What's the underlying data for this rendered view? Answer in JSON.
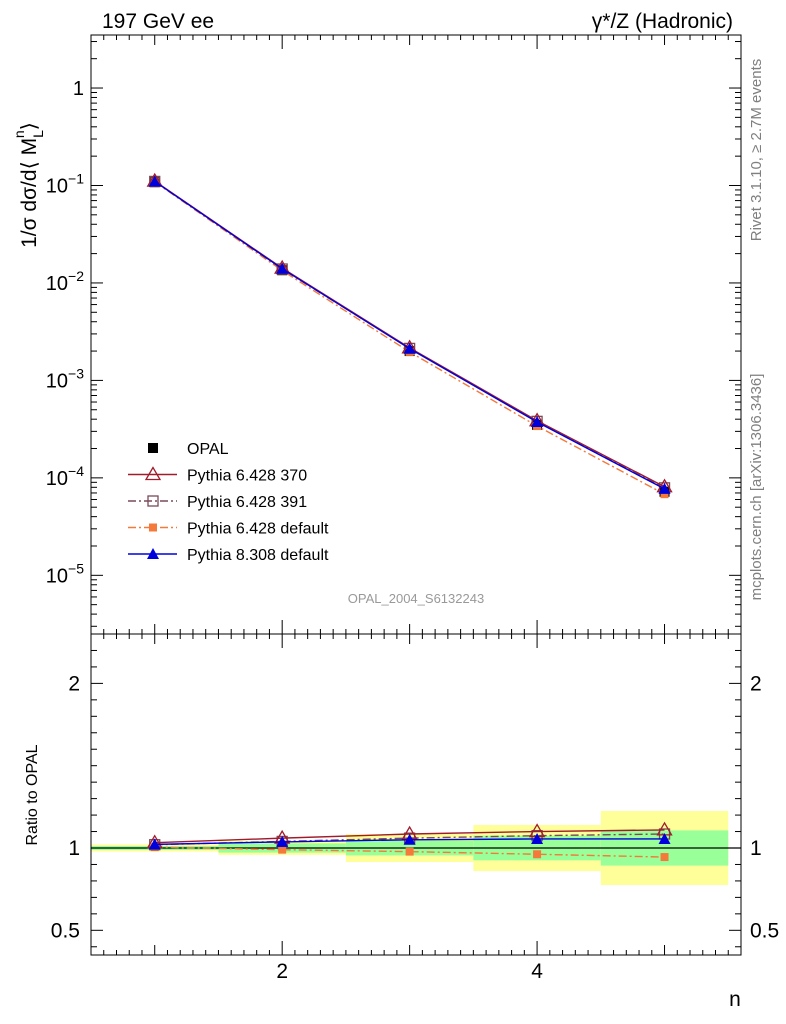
{
  "chart_data": [
    {
      "type": "line",
      "header_left": "197 GeV ee",
      "header_right": "γ*/Z (Hadronic)",
      "ylabel": "1/σ dσ/d⟨ M",
      "ylabel_sub": "L",
      "ylabel_sup": "n",
      "ylabel_close": "⟩",
      "y_scale": "log",
      "ylim": [
        2.5e-06,
        3.5
      ],
      "xlim": [
        0.5,
        5.6
      ],
      "y_ticks": [
        {
          "value": 1,
          "base": "1",
          "exp": ""
        },
        {
          "value": 0.1,
          "base": "10",
          "exp": "−1"
        },
        {
          "value": 0.01,
          "base": "10",
          "exp": "−2"
        },
        {
          "value": 0.001,
          "base": "10",
          "exp": "−3"
        },
        {
          "value": 0.0001,
          "base": "10",
          "exp": "−4"
        },
        {
          "value": 1e-05,
          "base": "10",
          "exp": "−5"
        }
      ],
      "watermark": "OPAL_2004_S6132243",
      "legend_position": "lower-left",
      "x": [
        1,
        2,
        3,
        4,
        5
      ],
      "series": [
        {
          "name": "OPAL",
          "values": [
            0.108,
            0.0135,
            0.002,
            0.00035,
            7.2e-05
          ],
          "color": "#000000",
          "marker": "filled-square",
          "style": "none"
        },
        {
          "name": "Pythia 6.428 370",
          "values": [
            0.111,
            0.0142,
            0.00216,
            0.000386,
            8.1e-05
          ],
          "color": "#a01c2c",
          "marker": "open-triangle",
          "style": "solid"
        },
        {
          "name": "Pythia 6.428 391",
          "values": [
            0.11,
            0.0139,
            0.00213,
            0.00038,
            7.9e-05
          ],
          "color": "#7a4a58",
          "marker": "open-square",
          "style": "dash-dot"
        },
        {
          "name": "Pythia 6.428 default",
          "values": [
            0.109,
            0.0134,
            0.00196,
            0.00034,
            6.8e-05
          ],
          "color": "#f5793a",
          "marker": "filled-square-small",
          "style": "dash-dot"
        },
        {
          "name": "Pythia 8.308 default",
          "values": [
            0.11,
            0.014,
            0.00212,
            0.000374,
            7.7e-05
          ],
          "color": "#0000dd",
          "marker": "filled-triangle",
          "style": "solid"
        }
      ]
    },
    {
      "type": "line",
      "ylabel": "Ratio to OPAL",
      "xlabel": "n",
      "ylim": [
        0.35,
        2.3
      ],
      "xlim": [
        0.5,
        5.6
      ],
      "y_ticks": [
        "0.5",
        "1",
        "2"
      ],
      "x_ticks": [
        "2",
        "4"
      ],
      "bands": [
        {
          "x_from": 0.5,
          "x_to": 1.5,
          "yellow": [
            0.978,
            1.022
          ],
          "green": [
            0.988,
            1.012
          ]
        },
        {
          "x_from": 1.5,
          "x_to": 2.5,
          "yellow": [
            0.958,
            1.042
          ],
          "green": [
            0.972,
            1.028
          ]
        },
        {
          "x_from": 2.5,
          "x_to": 3.5,
          "yellow": [
            0.915,
            1.085
          ],
          "green": [
            0.955,
            1.045
          ]
        },
        {
          "x_from": 3.5,
          "x_to": 4.5,
          "yellow": [
            0.86,
            1.14
          ],
          "green": [
            0.925,
            1.075
          ]
        },
        {
          "x_from": 4.5,
          "x_to": 5.5,
          "yellow": [
            0.775,
            1.225
          ],
          "green": [
            0.893,
            1.107
          ]
        }
      ],
      "x": [
        1,
        2,
        3,
        4,
        5
      ],
      "series": [
        {
          "name": "Pythia 6.428 370",
          "values": [
            1.032,
            1.06,
            1.085,
            1.1,
            1.11
          ]
        },
        {
          "name": "Pythia 6.428 391",
          "values": [
            1.02,
            1.04,
            1.06,
            1.075,
            1.085
          ]
        },
        {
          "name": "Pythia 6.428 default",
          "values": [
            1.005,
            0.99,
            0.978,
            0.962,
            0.945
          ]
        },
        {
          "name": "Pythia 8.308 default",
          "values": [
            1.022,
            1.037,
            1.05,
            1.055,
            1.055
          ]
        }
      ]
    }
  ],
  "side_text": {
    "rivet": "Rivet 3.1.10, ≥ 2.7M events",
    "mcplots": "mcplots.cern.ch [arXiv:1306.3436]"
  }
}
